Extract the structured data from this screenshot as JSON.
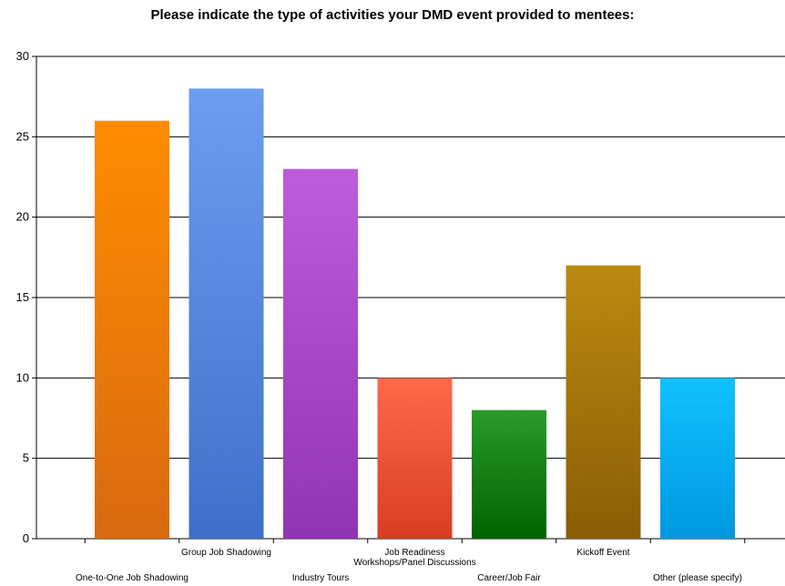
{
  "chart_data": {
    "type": "bar",
    "title": "Please indicate the type of activities your DMD event provided to mentees:",
    "xlabel": "",
    "ylabel": "",
    "ylim": [
      0,
      30
    ],
    "yticks": [
      0,
      5,
      10,
      15,
      20,
      25,
      30
    ],
    "grid": true,
    "categories": [
      "One-to-One Job Shadowing",
      "Group Job Shadowing",
      "Industry Tours",
      "Job Readiness Workshops/Panel Discussions",
      "Career/Job Fair",
      "Kickoff Event",
      "Other (please specify)"
    ],
    "category_label_lines": [
      [
        "One-to-One Job Shadowing"
      ],
      [
        "Group Job Shadowing"
      ],
      [
        "Industry Tours"
      ],
      [
        "Job Readiness",
        "Workshops/Panel Discussions"
      ],
      [
        "Career/Job Fair"
      ],
      [
        "Kickoff Event"
      ],
      [
        "Other (please specify)"
      ]
    ],
    "values": [
      26,
      28,
      23,
      10,
      8,
      17,
      10
    ],
    "colors": [
      [
        "#ff8c00",
        "#d86a10"
      ],
      [
        "#6c9df0",
        "#3f6fc9"
      ],
      [
        "#be5cdc",
        "#9134b3"
      ],
      [
        "#ff6a4a",
        "#d83d22"
      ],
      [
        "#2a9a2a",
        "#006400"
      ],
      [
        "#bb8a10",
        "#8a5d05"
      ],
      [
        "#10c2ff",
        "#0098df"
      ]
    ]
  }
}
